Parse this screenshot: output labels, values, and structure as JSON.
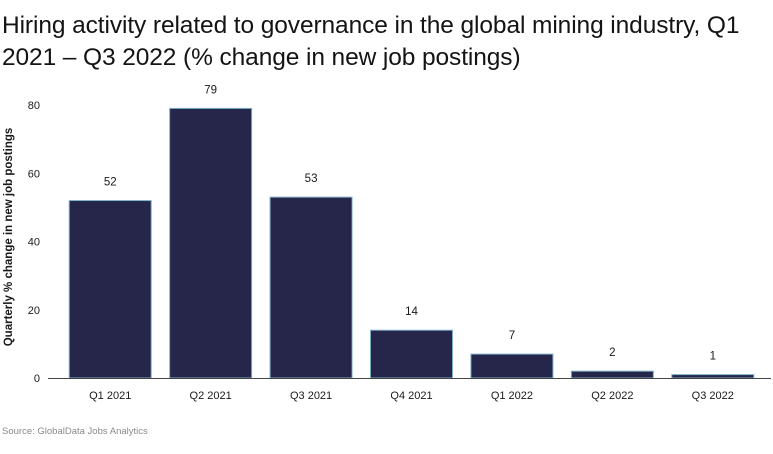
{
  "title": "Hiring activity related to governance in the global mining industry, Q1 2021 – Q3 2022 (% change in new job postings)",
  "source": "Source: GlobalData Jobs Analytics",
  "colors": {
    "bar_fill": "#25264a",
    "bar_stroke": "#7fb0c8",
    "axis": "#444444",
    "text": "#1a1a1a"
  },
  "chart_data": {
    "type": "bar",
    "categories": [
      "Q1 2021",
      "Q2 2021",
      "Q3 2021",
      "Q4 2021",
      "Q1 2022",
      "Q2 2022",
      "Q3 2022"
    ],
    "values": [
      52,
      79,
      53,
      14,
      7,
      2,
      1
    ],
    "data_labels": [
      "52",
      "79",
      "53",
      "14",
      "7",
      "2",
      "1"
    ],
    "title": "Hiring activity related to governance in the global mining industry, Q1 2021 – Q3 2022 (% change in new job postings)",
    "xlabel": "",
    "ylabel": "Quarterly % change in new job postings",
    "ylim": [
      0,
      80
    ],
    "yticks": [
      "0",
      "20",
      "40",
      "60",
      "80"
    ],
    "grid": false,
    "legend": "none"
  }
}
